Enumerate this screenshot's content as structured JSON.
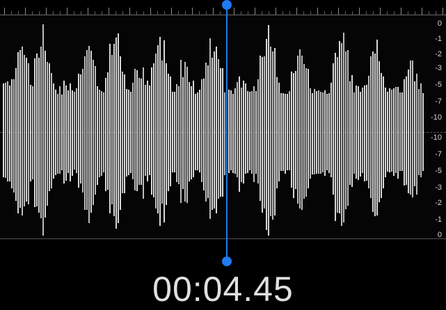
{
  "recorder": {
    "timestamp": "00:04.45",
    "db_scale_labels": [
      "0",
      "-1",
      "-2",
      "-3",
      "-5",
      "-7",
      "-10",
      "-10",
      "-7",
      "-5",
      "-3",
      "-2",
      "-1",
      "0"
    ],
    "accent_color": "#1f7cf0",
    "wave_color": "#d7d7d7",
    "background_color": "#000000"
  },
  "icons": {
    "playhead_top": "playhead-handle-icon",
    "playhead_bottom": "playhead-handle-icon"
  }
}
